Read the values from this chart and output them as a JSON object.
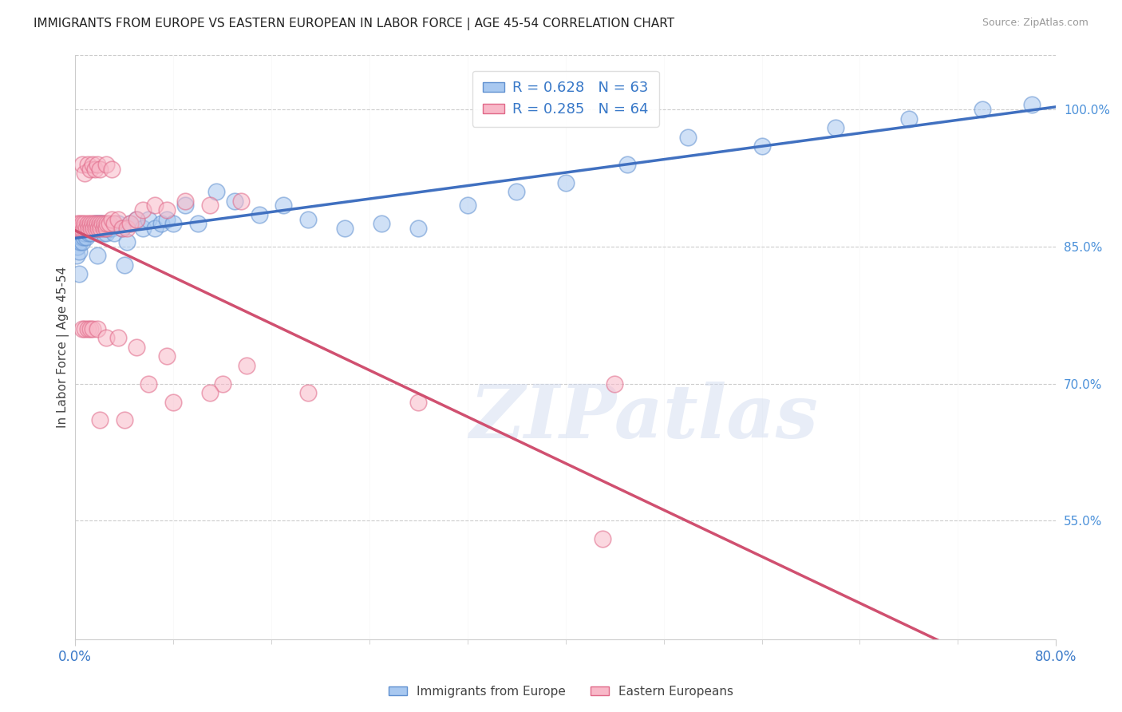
{
  "title": "IMMIGRANTS FROM EUROPE VS EASTERN EUROPEAN IN LABOR FORCE | AGE 45-54 CORRELATION CHART",
  "source": "Source: ZipAtlas.com",
  "ylabel": "In Labor Force | Age 45-54",
  "watermark": "ZIPatlas",
  "blue_label": "Immigrants from Europe",
  "pink_label": "Eastern Europeans",
  "blue_R": 0.628,
  "blue_N": 63,
  "pink_R": 0.285,
  "pink_N": 64,
  "blue_color": "#a8c8f0",
  "pink_color": "#f8b8c8",
  "blue_edge_color": "#6090d0",
  "pink_edge_color": "#e06888",
  "blue_line_color": "#4070c0",
  "pink_line_color": "#d05070",
  "legend_text_color": "#3878c8",
  "right_axis_color": "#4a90d9",
  "xlim": [
    0.0,
    0.8
  ],
  "ylim": [
    0.42,
    1.06
  ],
  "yticks": [
    0.55,
    0.7,
    0.85,
    1.0
  ],
  "ytick_labels": [
    "55.0%",
    "70.0%",
    "85.0%",
    "100.0%"
  ],
  "xtick_left_label": "0.0%",
  "xtick_right_label": "80.0%",
  "blue_x": [
    0.001,
    0.002,
    0.003,
    0.004,
    0.005,
    0.006,
    0.007,
    0.008,
    0.009,
    0.01,
    0.011,
    0.012,
    0.013,
    0.014,
    0.015,
    0.016,
    0.017,
    0.018,
    0.019,
    0.02,
    0.021,
    0.022,
    0.023,
    0.024,
    0.025,
    0.026,
    0.028,
    0.03,
    0.032,
    0.035,
    0.038,
    0.042,
    0.045,
    0.05,
    0.055,
    0.06,
    0.065,
    0.07,
    0.075,
    0.08,
    0.09,
    0.1,
    0.115,
    0.13,
    0.15,
    0.17,
    0.19,
    0.22,
    0.25,
    0.28,
    0.32,
    0.36,
    0.4,
    0.45,
    0.5,
    0.56,
    0.62,
    0.68,
    0.74,
    0.78,
    0.003,
    0.018,
    0.04
  ],
  "blue_y": [
    0.84,
    0.85,
    0.845,
    0.855,
    0.86,
    0.855,
    0.86,
    0.865,
    0.86,
    0.87,
    0.865,
    0.87,
    0.865,
    0.87,
    0.87,
    0.875,
    0.87,
    0.875,
    0.87,
    0.875,
    0.87,
    0.875,
    0.865,
    0.87,
    0.865,
    0.87,
    0.87,
    0.87,
    0.865,
    0.875,
    0.87,
    0.855,
    0.875,
    0.88,
    0.87,
    0.88,
    0.87,
    0.875,
    0.88,
    0.875,
    0.895,
    0.875,
    0.91,
    0.9,
    0.885,
    0.895,
    0.88,
    0.87,
    0.875,
    0.87,
    0.895,
    0.91,
    0.92,
    0.94,
    0.97,
    0.96,
    0.98,
    0.99,
    1.0,
    1.005,
    0.82,
    0.84,
    0.83
  ],
  "pink_x": [
    0.001,
    0.002,
    0.003,
    0.004,
    0.005,
    0.006,
    0.007,
    0.008,
    0.009,
    0.01,
    0.011,
    0.012,
    0.013,
    0.014,
    0.015,
    0.016,
    0.017,
    0.018,
    0.019,
    0.02,
    0.021,
    0.022,
    0.023,
    0.024,
    0.025,
    0.026,
    0.028,
    0.03,
    0.032,
    0.035,
    0.038,
    0.042,
    0.045,
    0.05,
    0.055,
    0.065,
    0.075,
    0.09,
    0.11,
    0.135,
    0.006,
    0.008,
    0.01,
    0.012,
    0.014,
    0.016,
    0.018,
    0.02,
    0.025,
    0.03,
    0.006,
    0.008,
    0.01,
    0.012,
    0.014,
    0.018,
    0.025,
    0.035,
    0.05,
    0.075,
    0.12,
    0.19,
    0.28,
    0.44
  ],
  "pink_y": [
    0.87,
    0.875,
    0.87,
    0.875,
    0.87,
    0.875,
    0.87,
    0.875,
    0.87,
    0.875,
    0.87,
    0.875,
    0.87,
    0.875,
    0.87,
    0.875,
    0.87,
    0.875,
    0.87,
    0.875,
    0.87,
    0.875,
    0.87,
    0.875,
    0.87,
    0.875,
    0.875,
    0.88,
    0.875,
    0.88,
    0.87,
    0.87,
    0.875,
    0.88,
    0.89,
    0.895,
    0.89,
    0.9,
    0.895,
    0.9,
    0.94,
    0.93,
    0.94,
    0.935,
    0.94,
    0.935,
    0.94,
    0.935,
    0.94,
    0.935,
    0.76,
    0.76,
    0.76,
    0.76,
    0.76,
    0.76,
    0.75,
    0.75,
    0.74,
    0.73,
    0.7,
    0.69,
    0.68,
    0.7
  ],
  "pink_outlier_x": [
    0.02,
    0.04,
    0.06,
    0.08,
    0.11,
    0.14,
    0.43
  ],
  "pink_outlier_y": [
    0.66,
    0.66,
    0.7,
    0.68,
    0.69,
    0.72,
    0.53
  ]
}
